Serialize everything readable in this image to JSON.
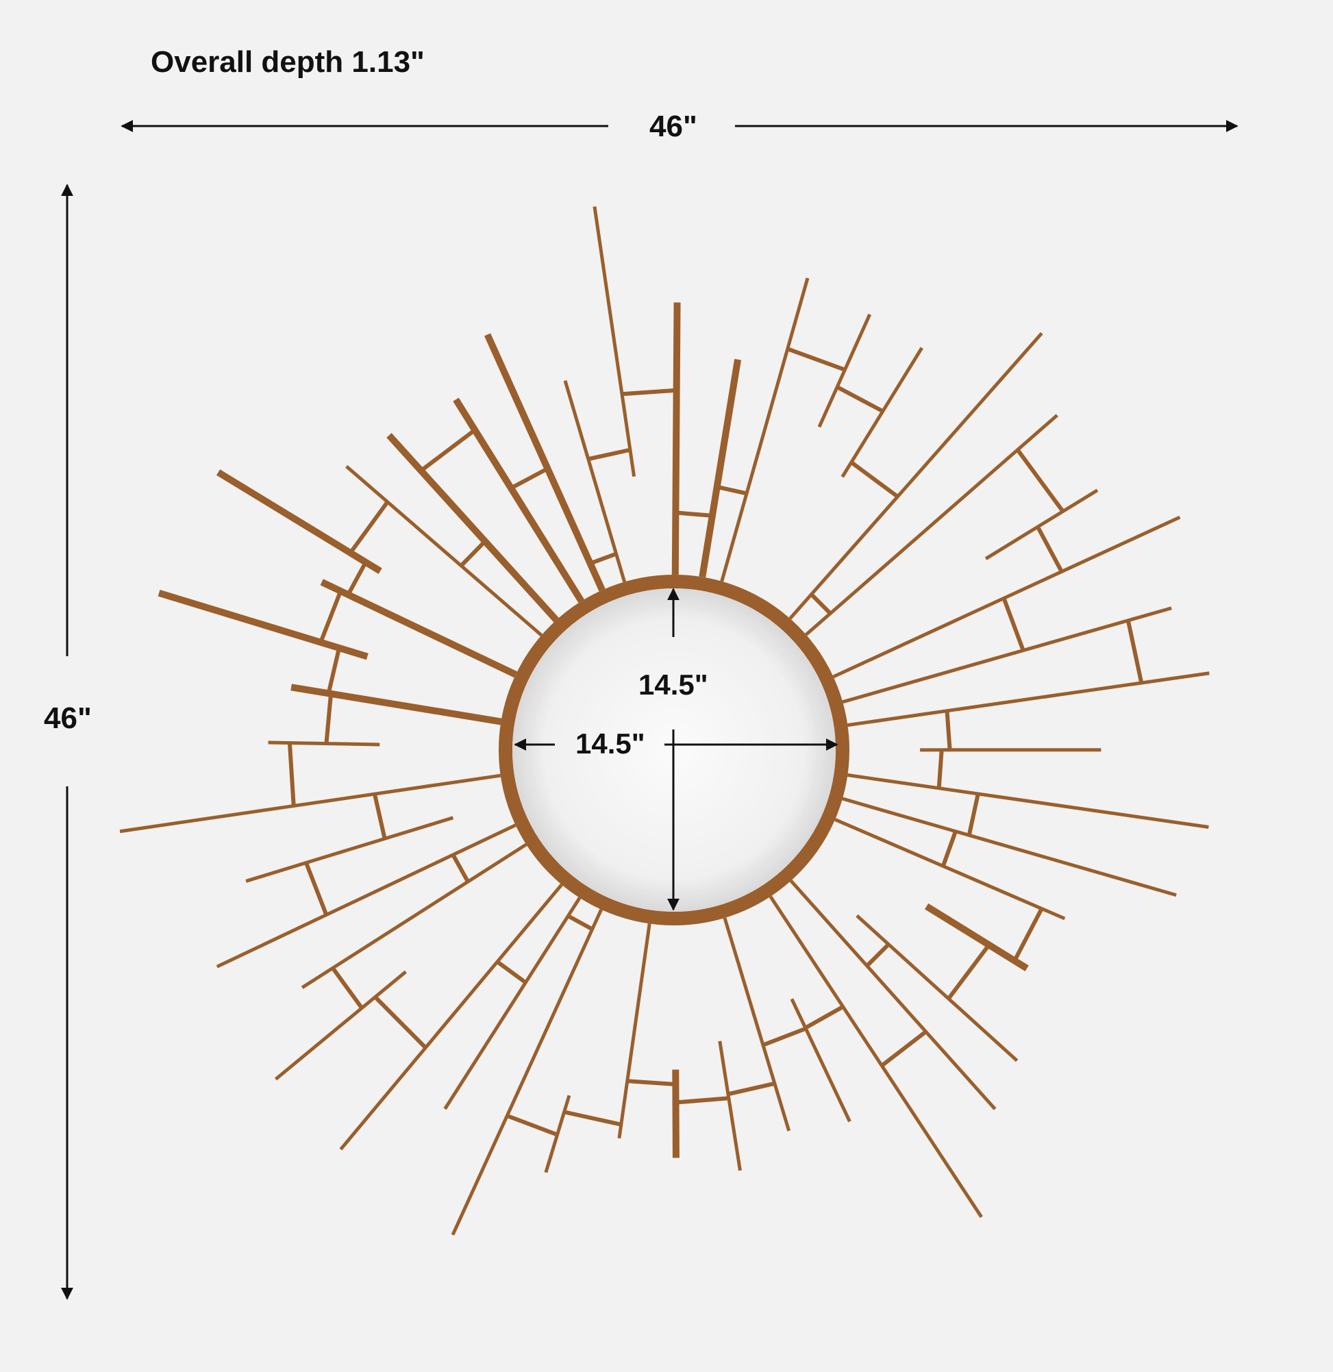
{
  "depth_label": "Overall depth 1.13\"",
  "width_label": "46\"",
  "height_label": "46\"",
  "mirror_height_label": "14.5\"",
  "mirror_width_label": "14.5\"",
  "colors": {
    "frame": "#9a5f2c",
    "frame_light": "#b07a45",
    "background": "#f2f2f2",
    "arrows": "#111111",
    "mirror": "#f7f7f7"
  }
}
